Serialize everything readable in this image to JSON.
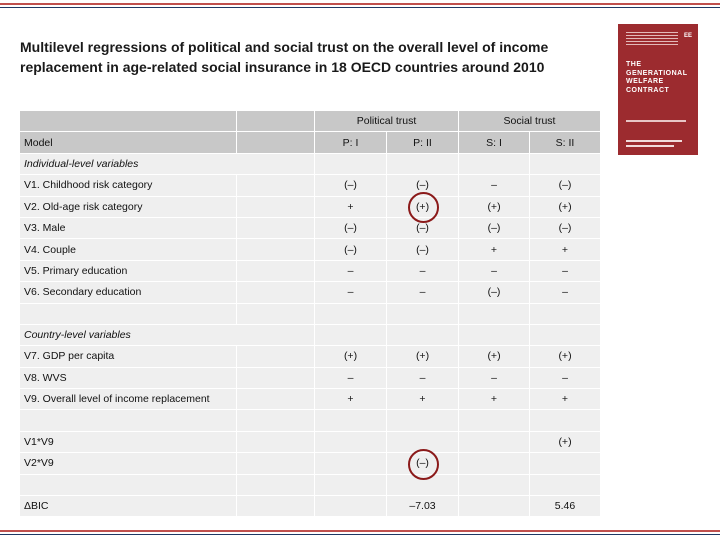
{
  "title": "Multilevel regressions of political and social trust on the overall level of income replacement in age-related social insurance in 18 OECD countries around 2010",
  "cover": {
    "title_lines": [
      "THE",
      "GENERATIONAL",
      "WELFARE",
      "CONTRACT"
    ],
    "logo": "EE"
  },
  "table": {
    "group_headers": [
      "Political trust",
      "Social trust"
    ],
    "model_label": "Model",
    "columns": [
      "P: I",
      "P: II",
      "S: I",
      "S: II"
    ],
    "sections": {
      "individual": "Individual-level variables",
      "country": "Country-level variables"
    },
    "rows": {
      "v1": {
        "label": "V1. Childhood risk category",
        "values": [
          "(–)",
          "(–)",
          "–",
          "(–)"
        ]
      },
      "v2": {
        "label": "V2. Old-age risk category",
        "values": [
          "+",
          "(+)",
          "(+)",
          "(+)"
        ]
      },
      "v3": {
        "label": "V3. Male",
        "values": [
          "(–)",
          "(–)",
          "(–)",
          "(–)"
        ]
      },
      "v4": {
        "label": "V4. Couple",
        "values": [
          "(–)",
          "(–)",
          "+",
          "+"
        ]
      },
      "v5": {
        "label": "V5. Primary education",
        "values": [
          "–",
          "–",
          "–",
          "–"
        ]
      },
      "v6": {
        "label": "V6. Secondary education",
        "values": [
          "–",
          "–",
          "(–)",
          "–"
        ]
      },
      "v7": {
        "label": "V7. GDP per capita",
        "values": [
          "(+)",
          "(+)",
          "(+)",
          "(+)"
        ]
      },
      "v8": {
        "label": "V8. WVS",
        "values": [
          "–",
          "–",
          "–",
          "–"
        ]
      },
      "v9": {
        "label": "V9. Overall level of income replacement",
        "values": [
          "+",
          "+",
          "+",
          "+"
        ]
      },
      "v1v9": {
        "label": "V1*V9",
        "values": [
          "",
          "",
          "",
          "(+)"
        ]
      },
      "v2v9": {
        "label": "V2*V9",
        "values": [
          "",
          "(–)",
          "",
          ""
        ]
      },
      "bic": {
        "label": "ΔBIC",
        "values": [
          "",
          "–7.03",
          "",
          "5.46"
        ]
      }
    }
  }
}
